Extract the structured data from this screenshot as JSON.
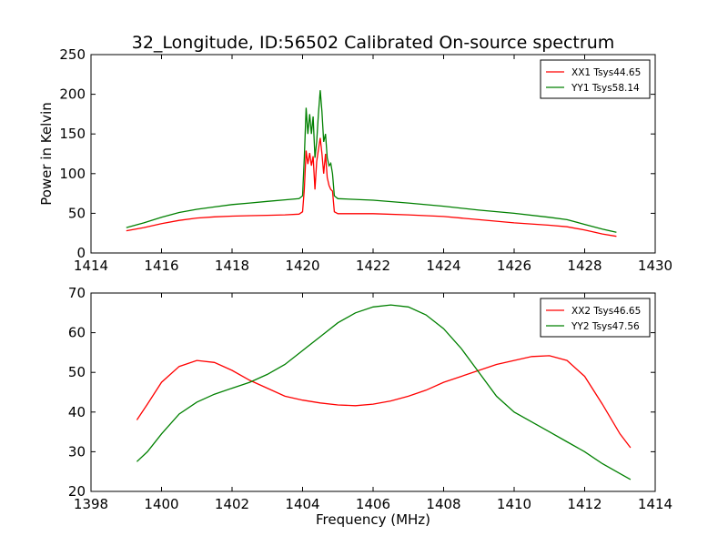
{
  "figure": {
    "title": "32_Longitude, ID:56502 Calibrated On-source spectrum"
  },
  "chart_data": [
    {
      "type": "line",
      "title": "32_Longitude, ID:56502 Calibrated On-source spectrum",
      "xlabel": "",
      "ylabel": "Power in Kelvin",
      "xlim": [
        1414,
        1430
      ],
      "ylim": [
        0,
        250
      ],
      "xticks": [
        1414,
        1416,
        1418,
        1420,
        1422,
        1424,
        1426,
        1428,
        1430
      ],
      "yticks": [
        0,
        50,
        100,
        150,
        200,
        250
      ],
      "grid": false,
      "legend_position": "top-right",
      "series": [
        {
          "name": "XX1 Tsys44.65",
          "color": "#ff0000",
          "points": [
            [
              1415.0,
              28
            ],
            [
              1415.5,
              32
            ],
            [
              1416.0,
              37
            ],
            [
              1416.5,
              41
            ],
            [
              1417.0,
              44
            ],
            [
              1417.5,
              45.5
            ],
            [
              1418.0,
              46.5
            ],
            [
              1418.5,
              47
            ],
            [
              1419.0,
              47.5
            ],
            [
              1419.5,
              48
            ],
            [
              1419.9,
              49
            ],
            [
              1420.0,
              52
            ],
            [
              1420.05,
              80
            ],
            [
              1420.1,
              129
            ],
            [
              1420.15,
              112
            ],
            [
              1420.2,
              126
            ],
            [
              1420.25,
              110
            ],
            [
              1420.3,
              122
            ],
            [
              1420.35,
              80
            ],
            [
              1420.4,
              115
            ],
            [
              1420.45,
              130
            ],
            [
              1420.5,
              145
            ],
            [
              1420.55,
              125
            ],
            [
              1420.6,
              100
            ],
            [
              1420.65,
              125
            ],
            [
              1420.7,
              95
            ],
            [
              1420.75,
              85
            ],
            [
              1420.8,
              80
            ],
            [
              1420.85,
              78
            ],
            [
              1420.9,
              52
            ],
            [
              1421.0,
              49.5
            ],
            [
              1422.0,
              49.5
            ],
            [
              1423.0,
              48
            ],
            [
              1424.0,
              46
            ],
            [
              1425.0,
              42
            ],
            [
              1426.0,
              38
            ],
            [
              1427.0,
              35
            ],
            [
              1427.5,
              33
            ],
            [
              1428.0,
              29
            ],
            [
              1428.5,
              24
            ],
            [
              1428.9,
              21
            ]
          ]
        },
        {
          "name": "YY1 Tsys58.14",
          "color": "#008000",
          "points": [
            [
              1415.0,
              32
            ],
            [
              1415.5,
              38
            ],
            [
              1416.0,
              45
            ],
            [
              1416.5,
              51
            ],
            [
              1417.0,
              55
            ],
            [
              1417.5,
              58
            ],
            [
              1418.0,
              61
            ],
            [
              1418.5,
              63
            ],
            [
              1419.0,
              65
            ],
            [
              1419.5,
              67
            ],
            [
              1419.9,
              68.5
            ],
            [
              1420.0,
              72
            ],
            [
              1420.05,
              120
            ],
            [
              1420.1,
              183
            ],
            [
              1420.15,
              150
            ],
            [
              1420.2,
              175
            ],
            [
              1420.25,
              150
            ],
            [
              1420.3,
              172
            ],
            [
              1420.35,
              120
            ],
            [
              1420.4,
              140
            ],
            [
              1420.45,
              175
            ],
            [
              1420.5,
              205
            ],
            [
              1420.55,
              178
            ],
            [
              1420.6,
              140
            ],
            [
              1420.65,
              150
            ],
            [
              1420.7,
              120
            ],
            [
              1420.75,
              110
            ],
            [
              1420.8,
              113
            ],
            [
              1420.85,
              100
            ],
            [
              1420.9,
              72
            ],
            [
              1421.0,
              68.5
            ],
            [
              1422.0,
              66.5
            ],
            [
              1423.0,
              63
            ],
            [
              1424.0,
              59
            ],
            [
              1425.0,
              54
            ],
            [
              1426.0,
              50
            ],
            [
              1427.0,
              45
            ],
            [
              1427.5,
              42
            ],
            [
              1428.0,
              36
            ],
            [
              1428.5,
              30
            ],
            [
              1428.9,
              26
            ]
          ]
        }
      ]
    },
    {
      "type": "line",
      "title": "",
      "xlabel": "Frequency (MHz)",
      "ylabel": "",
      "xlim": [
        1398,
        1414
      ],
      "ylim": [
        20,
        70
      ],
      "xticks": [
        1398,
        1400,
        1402,
        1404,
        1406,
        1408,
        1410,
        1412,
        1414
      ],
      "yticks": [
        20,
        30,
        40,
        50,
        60,
        70
      ],
      "grid": false,
      "legend_position": "top-right",
      "series": [
        {
          "name": "XX2 Tsys46.65",
          "color": "#ff0000",
          "points": [
            [
              1399.3,
              38
            ],
            [
              1399.6,
              42
            ],
            [
              1400.0,
              47.5
            ],
            [
              1400.5,
              51.5
            ],
            [
              1401.0,
              53
            ],
            [
              1401.5,
              52.5
            ],
            [
              1402.0,
              50.5
            ],
            [
              1402.5,
              48
            ],
            [
              1403.0,
              46
            ],
            [
              1403.5,
              44
            ],
            [
              1404.0,
              43
            ],
            [
              1404.5,
              42.3
            ],
            [
              1405.0,
              41.8
            ],
            [
              1405.5,
              41.6
            ],
            [
              1406.0,
              42
            ],
            [
              1406.5,
              42.8
            ],
            [
              1407.0,
              44
            ],
            [
              1407.5,
              45.5
            ],
            [
              1408.0,
              47.5
            ],
            [
              1408.5,
              49
            ],
            [
              1409.0,
              50.5
            ],
            [
              1409.5,
              52
            ],
            [
              1410.0,
              53
            ],
            [
              1410.5,
              54
            ],
            [
              1411.0,
              54.2
            ],
            [
              1411.5,
              53
            ],
            [
              1412.0,
              49
            ],
            [
              1412.5,
              42
            ],
            [
              1413.0,
              34.5
            ],
            [
              1413.3,
              31
            ]
          ]
        },
        {
          "name": "YY2 Tsys47.56",
          "color": "#008000",
          "points": [
            [
              1399.3,
              27.5
            ],
            [
              1399.6,
              30
            ],
            [
              1400.0,
              34.5
            ],
            [
              1400.5,
              39.5
            ],
            [
              1401.0,
              42.5
            ],
            [
              1401.5,
              44.5
            ],
            [
              1402.0,
              46
            ],
            [
              1402.5,
              47.5
            ],
            [
              1403.0,
              49.5
            ],
            [
              1403.5,
              52
            ],
            [
              1404.0,
              55.5
            ],
            [
              1404.5,
              59
            ],
            [
              1405.0,
              62.5
            ],
            [
              1405.5,
              65
            ],
            [
              1406.0,
              66.5
            ],
            [
              1406.5,
              67
            ],
            [
              1407.0,
              66.5
            ],
            [
              1407.5,
              64.5
            ],
            [
              1408.0,
              61
            ],
            [
              1408.5,
              56
            ],
            [
              1409.0,
              50
            ],
            [
              1409.5,
              44
            ],
            [
              1410.0,
              40
            ],
            [
              1410.5,
              37.5
            ],
            [
              1411.0,
              35
            ],
            [
              1411.5,
              32.5
            ],
            [
              1412.0,
              30
            ],
            [
              1412.5,
              27
            ],
            [
              1413.0,
              24.5
            ],
            [
              1413.3,
              23
            ]
          ]
        }
      ]
    }
  ]
}
